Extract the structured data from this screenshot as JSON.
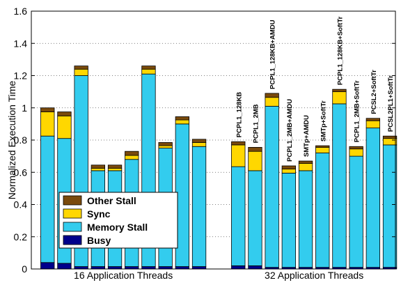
{
  "chart_data": {
    "type": "bar",
    "stacked": true,
    "ylabel": "Normalized Execution Time",
    "ylim": [
      0,
      1.6
    ],
    "yticks": [
      "0",
      "0.2",
      "0.4",
      "0.6",
      "0.8",
      "1",
      "1.2",
      "1.4",
      "1.6"
    ],
    "grid": true,
    "legend_placement": "bottom-left",
    "groups": [
      {
        "label": "16 Application Threads",
        "bars": [
          {
            "name": "",
            "busy": 0.04,
            "memory": 0.785,
            "sync": 0.15,
            "other": 0.025
          },
          {
            "name": "",
            "busy": 0.035,
            "memory": 0.775,
            "sync": 0.14,
            "other": 0.025
          },
          {
            "name": "",
            "busy": 0.015,
            "memory": 1.185,
            "sync": 0.04,
            "other": 0.02
          },
          {
            "name": "",
            "busy": 0.015,
            "memory": 0.595,
            "sync": 0.015,
            "other": 0.02
          },
          {
            "name": "",
            "busy": 0.015,
            "memory": 0.595,
            "sync": 0.015,
            "other": 0.02
          },
          {
            "name": "",
            "busy": 0.015,
            "memory": 0.665,
            "sync": 0.025,
            "other": 0.025
          },
          {
            "name": "",
            "busy": 0.015,
            "memory": 1.195,
            "sync": 0.03,
            "other": 0.02
          },
          {
            "name": "",
            "busy": 0.015,
            "memory": 0.735,
            "sync": 0.015,
            "other": 0.02
          },
          {
            "name": "",
            "busy": 0.015,
            "memory": 0.885,
            "sync": 0.025,
            "other": 0.02
          },
          {
            "name": "",
            "busy": 0.015,
            "memory": 0.745,
            "sync": 0.025,
            "other": 0.02
          }
        ]
      },
      {
        "label": "32 Application Threads",
        "bars": [
          {
            "name": "PCPL1_128KB",
            "busy": 0.02,
            "memory": 0.615,
            "sync": 0.135,
            "other": 0.02
          },
          {
            "name": "PCPL1_2MB",
            "busy": 0.02,
            "memory": 0.59,
            "sync": 0.12,
            "other": 0.025
          },
          {
            "name": "PCPL1_128KB+AMDU",
            "busy": 0.01,
            "memory": 1.0,
            "sync": 0.055,
            "other": 0.025
          },
          {
            "name": "PCPL1_2MB+AMDU",
            "busy": 0.01,
            "memory": 0.585,
            "sync": 0.025,
            "other": 0.02
          },
          {
            "name": "SMTp+AMDU",
            "busy": 0.01,
            "memory": 0.6,
            "sync": 0.045,
            "other": 0.015
          },
          {
            "name": "SMTp+SoftTr",
            "busy": 0.01,
            "memory": 0.71,
            "sync": 0.035,
            "other": 0.01
          },
          {
            "name": "PCPL1_128KB+SoftTr",
            "busy": 0.01,
            "memory": 1.015,
            "sync": 0.075,
            "other": 0.015
          },
          {
            "name": "PCPL1_2MB+SoftTr",
            "busy": 0.01,
            "memory": 0.69,
            "sync": 0.045,
            "other": 0.015
          },
          {
            "name": "PCSL2+SoftTr",
            "busy": 0.01,
            "memory": 0.865,
            "sync": 0.045,
            "other": 0.015
          },
          {
            "name": "PCSL2PL1+SoftTr",
            "busy": 0.01,
            "memory": 0.76,
            "sync": 0.04,
            "other": 0.015
          }
        ]
      }
    ],
    "legend": [
      {
        "key": "other",
        "label": "Other Stall",
        "color": "#7a4a0c"
      },
      {
        "key": "sync",
        "label": "Sync",
        "color": "#ffd700"
      },
      {
        "key": "memory",
        "label": "Memory Stall",
        "color": "#33ccee"
      },
      {
        "key": "busy",
        "label": "Busy",
        "color": "#00008b"
      }
    ]
  }
}
